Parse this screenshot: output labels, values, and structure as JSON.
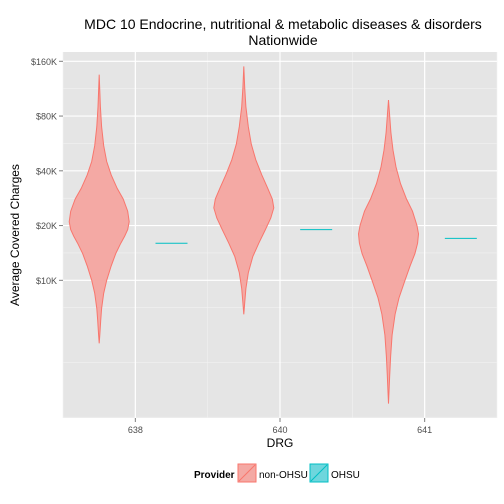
{
  "chart_data": {
    "type": "violin",
    "title": "MDC 10 Endocrine, nutritional & metabolic diseases & disorders",
    "subtitle": "Nationwide",
    "xlabel": "DRG",
    "ylabel": "Average Covered Charges",
    "scale": "log",
    "categories": [
      "638",
      "640",
      "641"
    ],
    "y_ticks": [
      {
        "value": 10000,
        "label": "$10K"
      },
      {
        "value": 20000,
        "label": "$20K"
      },
      {
        "value": 40000,
        "label": "$40K"
      },
      {
        "value": 80000,
        "label": "$80K"
      },
      {
        "value": 160000,
        "label": "$160K"
      }
    ],
    "ylim": [
      1750,
      180000
    ],
    "grid": true,
    "legend": {
      "title": "Provider",
      "position": "bottom",
      "entries": [
        {
          "name": "non-OHSU",
          "fill": "#f4a9a4",
          "stroke": "#f8766d"
        },
        {
          "name": "OHSU",
          "fill": "#6ed6dd",
          "stroke": "#00bfc4"
        }
      ]
    },
    "series": [
      {
        "name": "non-OHSU",
        "color": "#f8766d",
        "fill": "#f4a9a4",
        "violins": [
          {
            "category": "638",
            "profile": [
              [
                4500,
                0.0
              ],
              [
                5000,
                0.02
              ],
              [
                6000,
                0.05
              ],
              [
                7000,
                0.08
              ],
              [
                8500,
                0.15
              ],
              [
                10000,
                0.25
              ],
              [
                12000,
                0.4
              ],
              [
                14000,
                0.55
              ],
              [
                16000,
                0.72
              ],
              [
                17500,
                0.85
              ],
              [
                19000,
                0.95
              ],
              [
                21000,
                1.0
              ],
              [
                24000,
                0.95
              ],
              [
                28000,
                0.8
              ],
              [
                32000,
                0.6
              ],
              [
                38000,
                0.4
              ],
              [
                45000,
                0.25
              ],
              [
                55000,
                0.15
              ],
              [
                70000,
                0.08
              ],
              [
                90000,
                0.04
              ],
              [
                110000,
                0.02
              ],
              [
                135000,
                0.0
              ]
            ]
          },
          {
            "category": "640",
            "profile": [
              [
                6500,
                0.0
              ],
              [
                7500,
                0.03
              ],
              [
                9000,
                0.07
              ],
              [
                11000,
                0.15
              ],
              [
                13500,
                0.3
              ],
              [
                16000,
                0.5
              ],
              [
                19000,
                0.72
              ],
              [
                22000,
                0.9
              ],
              [
                25000,
                1.0
              ],
              [
                28000,
                0.95
              ],
              [
                32000,
                0.8
              ],
              [
                38000,
                0.6
              ],
              [
                46000,
                0.4
              ],
              [
                56000,
                0.25
              ],
              [
                70000,
                0.15
              ],
              [
                90000,
                0.07
              ],
              [
                115000,
                0.03
              ],
              [
                150000,
                0.0
              ]
            ]
          },
          {
            "category": "641",
            "profile": [
              [
                2100,
                0.0
              ],
              [
                2500,
                0.02
              ],
              [
                3000,
                0.04
              ],
              [
                3800,
                0.07
              ],
              [
                5000,
                0.12
              ],
              [
                6500,
                0.22
              ],
              [
                8000,
                0.35
              ],
              [
                10000,
                0.55
              ],
              [
                12000,
                0.72
              ],
              [
                14000,
                0.88
              ],
              [
                16000,
                0.97
              ],
              [
                18000,
                1.0
              ],
              [
                20000,
                0.95
              ],
              [
                24000,
                0.8
              ],
              [
                28000,
                0.6
              ],
              [
                34000,
                0.4
              ],
              [
                42000,
                0.25
              ],
              [
                52000,
                0.15
              ],
              [
                65000,
                0.08
              ],
              [
                80000,
                0.04
              ],
              [
                98000,
                0.0
              ]
            ]
          }
        ]
      },
      {
        "name": "OHSU",
        "color": "#00bfc4",
        "values": [
          {
            "category": "638",
            "value": 16000
          },
          {
            "category": "640",
            "value": 19000
          },
          {
            "category": "641",
            "value": 17000
          }
        ]
      }
    ]
  }
}
